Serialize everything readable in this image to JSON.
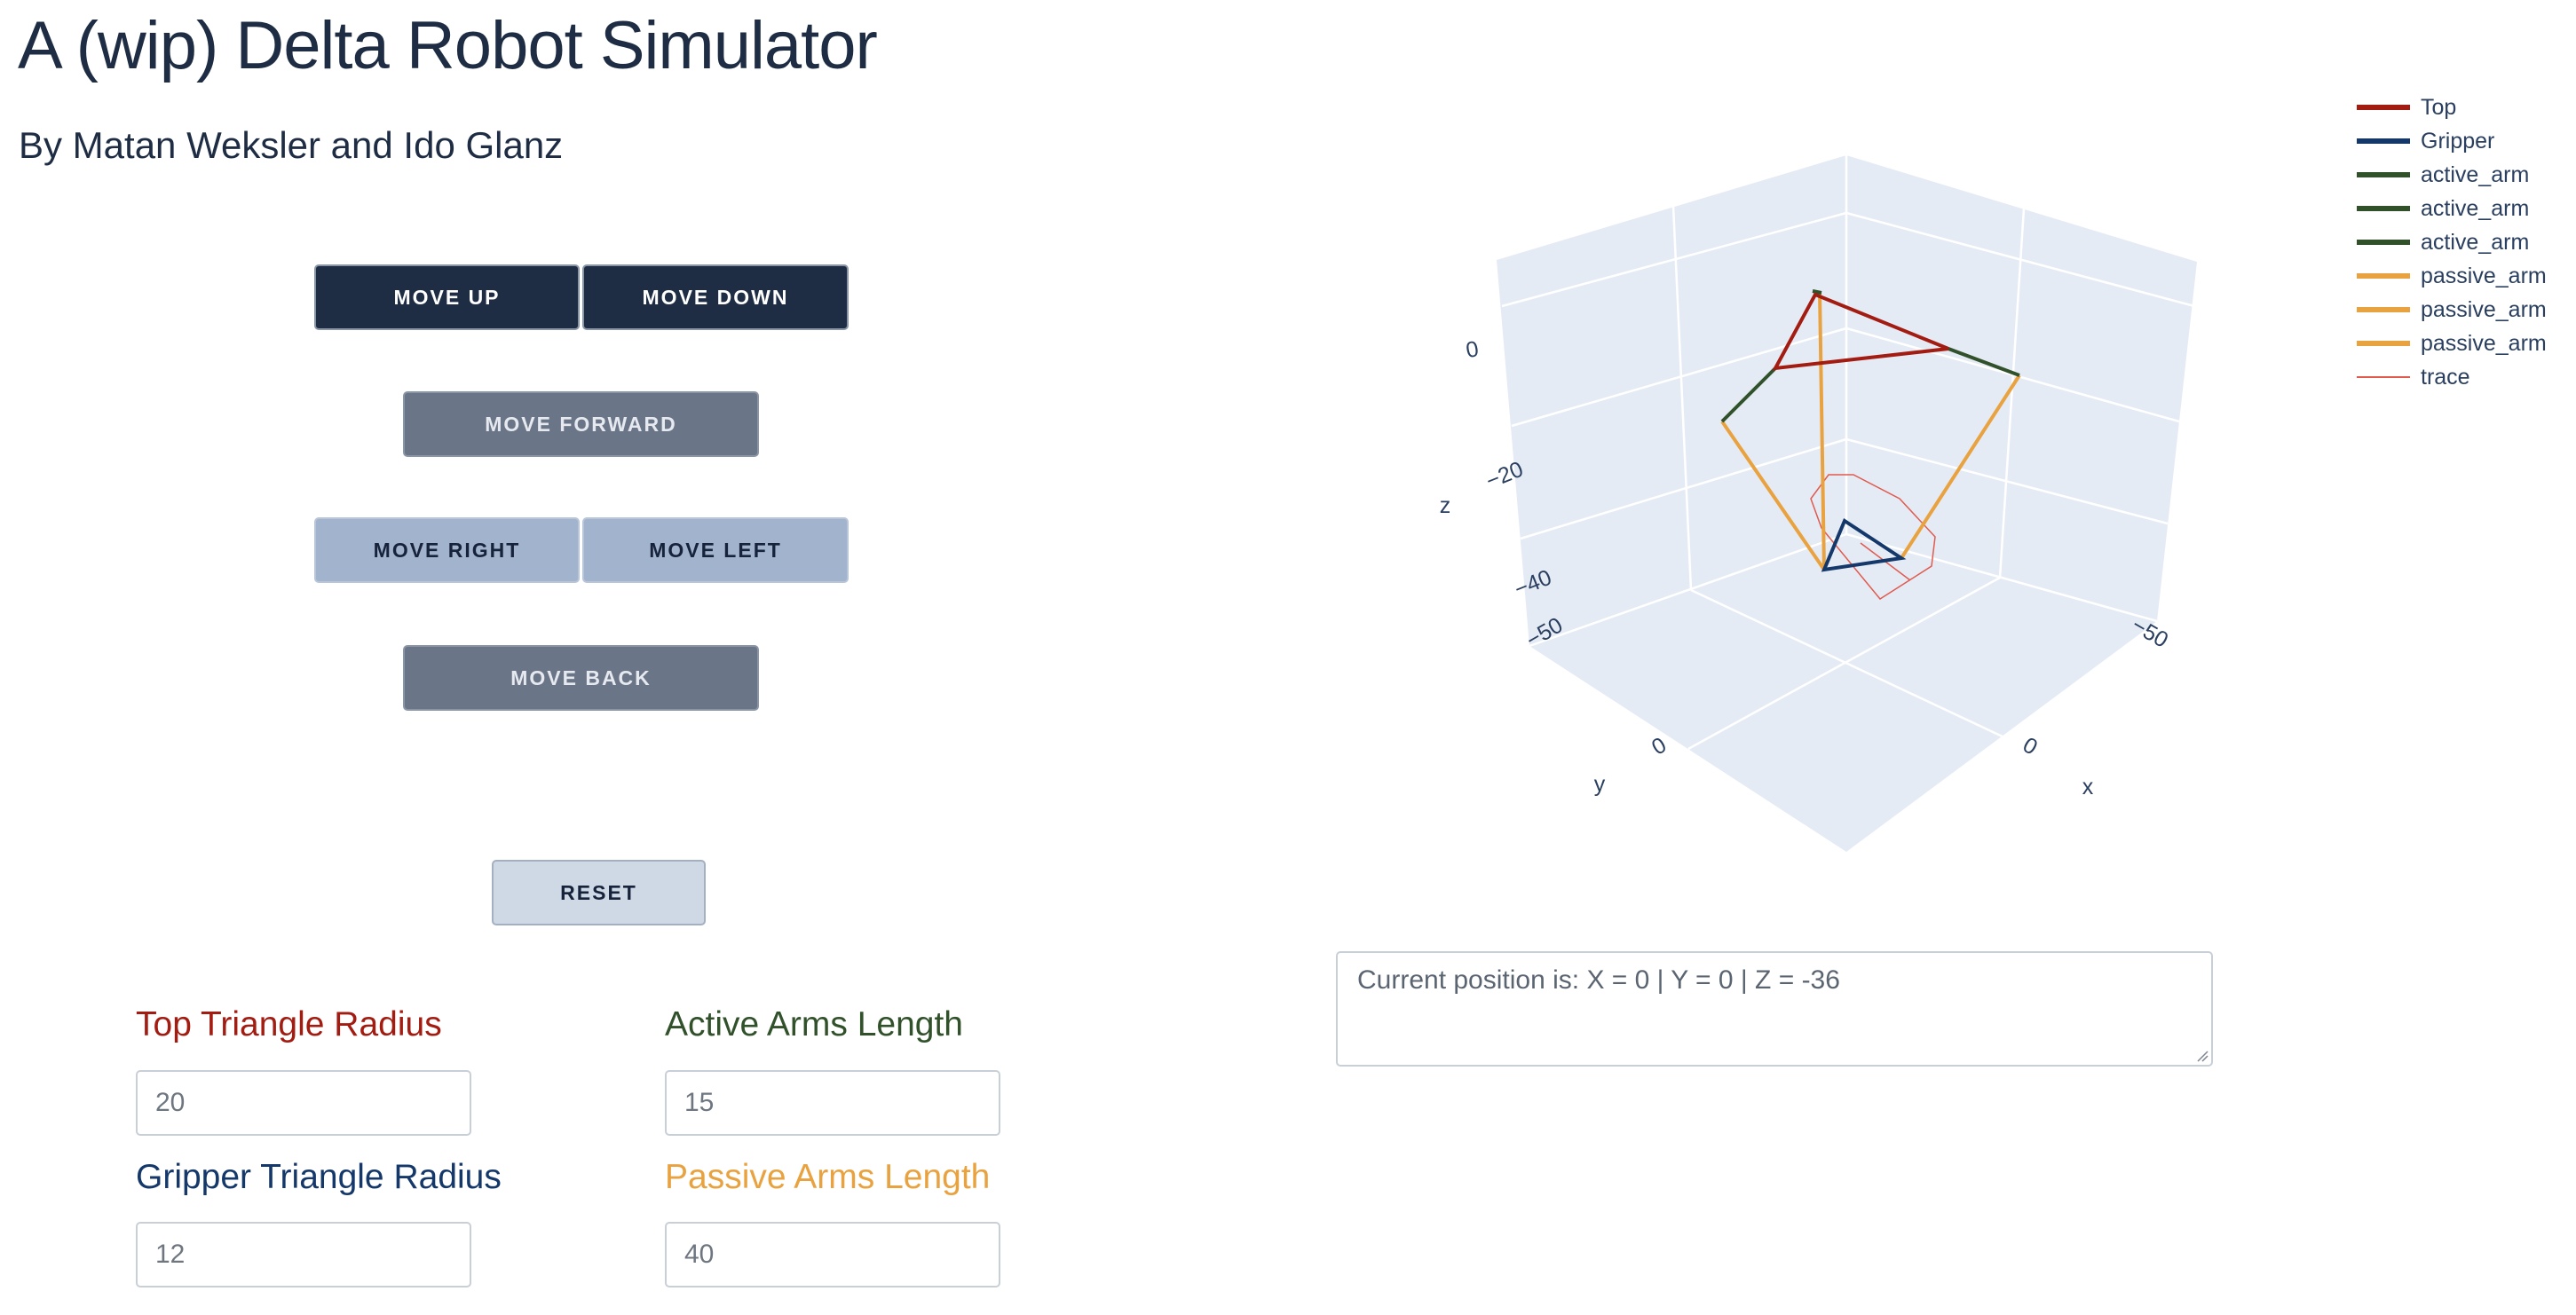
{
  "header": {
    "title": "A (wip) Delta Robot Simulator",
    "subtitle": "By Matan Weksler and Ido Glanz"
  },
  "controls": {
    "move_up": "MOVE UP",
    "move_down": "MOVE DOWN",
    "move_forward": "MOVE FORWARD",
    "move_right": "MOVE RIGHT",
    "move_left": "MOVE LEFT",
    "move_back": "MOVE BACK",
    "reset": "RESET"
  },
  "params": {
    "top_radius": {
      "label": "Top Triangle Radius",
      "value": "20",
      "color": "#a31c12"
    },
    "active_length": {
      "label": "Active Arms Length",
      "value": "15",
      "color": "#31512b"
    },
    "gripper_radius": {
      "label": "Gripper Triangle Radius",
      "value": "12",
      "color": "#15386b"
    },
    "passive_length": {
      "label": "Passive Arms Length",
      "value": "40",
      "color": "#e9a240"
    }
  },
  "status": {
    "text": "Current position is: X = 0 | Y = 0 | Z = -36"
  },
  "plot": {
    "axis_titles": {
      "x": "x",
      "y": "y",
      "z": "z"
    },
    "ticks": {
      "x": [
        "−50",
        "0"
      ],
      "y": [
        "−50",
        "0"
      ],
      "z": [
        "0",
        "−20",
        "−40"
      ]
    },
    "legend": [
      {
        "name": "Top",
        "color": "#a31c12"
      },
      {
        "name": "Gripper",
        "color": "#15386b"
      },
      {
        "name": "active_arm",
        "color": "#31512b"
      },
      {
        "name": "active_arm",
        "color": "#31512b"
      },
      {
        "name": "active_arm",
        "color": "#31512b"
      },
      {
        "name": "passive_arm",
        "color": "#e9a240"
      },
      {
        "name": "passive_arm",
        "color": "#e9a240"
      },
      {
        "name": "passive_arm",
        "color": "#e9a240"
      },
      {
        "name": "trace",
        "color": "#e05a4e"
      }
    ],
    "background": "#e5ebf5",
    "gridline": "#ffffff"
  }
}
